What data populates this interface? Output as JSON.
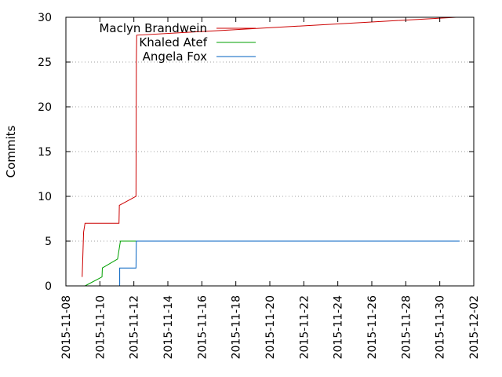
{
  "chart_data": {
    "type": "line",
    "title": "",
    "xlabel": "",
    "ylabel": "Commits",
    "ylim": [
      0,
      30
    ],
    "xlim": [
      "2015-11-08",
      "2015-12-02"
    ],
    "grid": true,
    "legend_position": "top-left",
    "x_tick_labels": [
      "2015-11-08",
      "2015-11-10",
      "2015-11-12",
      "2015-11-14",
      "2015-11-16",
      "2015-11-18",
      "2015-11-20",
      "2015-11-22",
      "2015-11-24",
      "2015-11-26",
      "2015-11-28",
      "2015-11-30",
      "2015-12-02"
    ],
    "y_tick_labels": [
      "0",
      "5",
      "10",
      "15",
      "20",
      "25",
      "30"
    ],
    "series": [
      {
        "name": "Maclyn Brandwein",
        "color": "#cc0000",
        "points": [
          [
            "2015-11-08 23:00",
            1
          ],
          [
            "2015-11-09 01:00",
            6
          ],
          [
            "2015-11-09 03:00",
            7
          ],
          [
            "2015-11-11 03:00",
            7
          ],
          [
            "2015-11-11 03:30",
            9
          ],
          [
            "2015-11-12 03:00",
            10
          ],
          [
            "2015-11-12 03:30",
            25
          ],
          [
            "2015-11-12 04:00",
            28
          ],
          [
            "2015-11-30 23:00",
            30
          ]
        ]
      },
      {
        "name": "Khaled Atef",
        "color": "#00a000",
        "points": [
          [
            "2015-11-09 03:00",
            0
          ],
          [
            "2015-11-10 03:00",
            1
          ],
          [
            "2015-11-10 03:30",
            2
          ],
          [
            "2015-11-11 01:00",
            3
          ],
          [
            "2015-11-11 05:00",
            5
          ],
          [
            "2015-11-12 03:30",
            5
          ]
        ]
      },
      {
        "name": "Angela Fox",
        "color": "#0060c0",
        "points": [
          [
            "2015-11-11 04:00",
            0
          ],
          [
            "2015-11-11 04:00",
            2
          ],
          [
            "2015-11-12 03:00",
            2
          ],
          [
            "2015-11-12 03:30",
            5
          ],
          [
            "2015-12-01 04:00",
            5
          ]
        ]
      }
    ]
  }
}
